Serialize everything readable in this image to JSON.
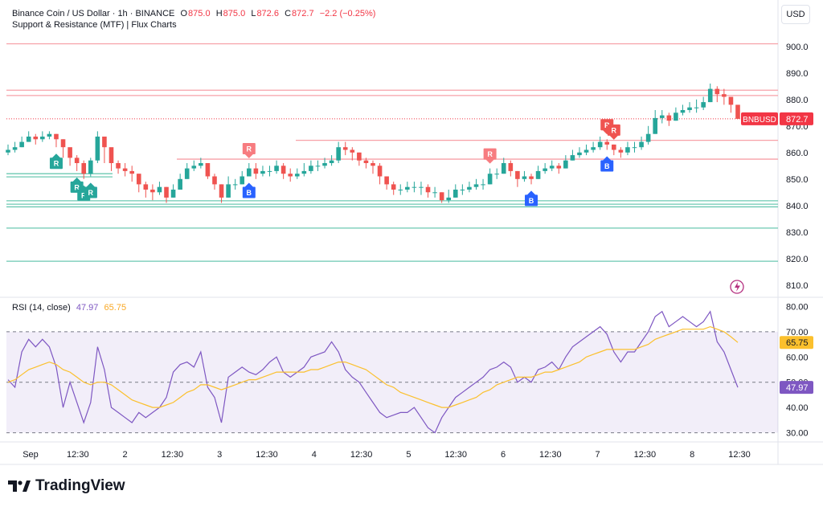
{
  "header": {
    "symbol": "Binance Coin / US Dollar · 1h · BINANCE",
    "o_label": "O",
    "o_value": "875.0",
    "h_label": "H",
    "h_value": "875.0",
    "l_label": "L",
    "l_value": "872.6",
    "c_label": "C",
    "c_value": "872.7",
    "change": "−2.2 (−0.25%)",
    "indicator": "Support & Resistance (MTF) | Flux Charts",
    "currency": "USD"
  },
  "rsi_legend": {
    "title": "RSI (14, close)",
    "rsi_value": "47.97",
    "ma_value": "65.75"
  },
  "branding": {
    "logo_text": "TradingView"
  },
  "colors": {
    "up": "#26a69a",
    "down": "#ef5350",
    "resistance": "#f7a1a8",
    "support": "#6cc8b2",
    "rsi_line": "#7e57c2",
    "rsi_ma": "#fbc02d",
    "buy_marker": "#2962ff",
    "sell_marker": "#f77c80",
    "price_tag": "#f23645"
  },
  "chart_data": [
    {
      "type": "candlestick",
      "ylim": [
        806,
        906
      ],
      "y_ticks": [
        "900.0",
        "890.0",
        "880.0",
        "870.0",
        "860.0",
        "850.0",
        "840.0",
        "830.0",
        "820.0",
        "810.0"
      ],
      "x_ticks": [
        "Sep",
        "12:30",
        "2",
        "12:30",
        "3",
        "12:30",
        "4",
        "12:30",
        "5",
        "12:30",
        "6",
        "12:30",
        "7",
        "12:30",
        "8",
        "12:30"
      ],
      "last_price": "872.7",
      "last_price_label": "BNBUSD",
      "resistance_levels": [
        901.0,
        883.5,
        881.5,
        864.6,
        857.5
      ],
      "support_levels": [
        852.0,
        850.8,
        841.8,
        840.5,
        839.5,
        831.5,
        819.0
      ],
      "buy_markers": [
        {
          "x": 12,
          "label": "B"
        },
        {
          "x": 35,
          "label": "B"
        },
        {
          "x": 76,
          "label": "B"
        },
        {
          "x": 87,
          "label": "B"
        }
      ],
      "sell_markers": [
        {
          "x": 35,
          "label": "R"
        },
        {
          "x": 70,
          "label": "R"
        },
        {
          "x": 87,
          "label": "R"
        },
        {
          "x": 88,
          "label": "R"
        }
      ],
      "support_markers": [
        {
          "x": 7,
          "label": "R"
        },
        {
          "x": 10,
          "label": "R"
        },
        {
          "x": 11,
          "label": "R"
        },
        {
          "x": 12,
          "label": "R"
        }
      ],
      "close": [
        861,
        862,
        864,
        866,
        865,
        866,
        867,
        865,
        862,
        858,
        856,
        852,
        857,
        866,
        862,
        856,
        854,
        853,
        852,
        848,
        846,
        845,
        847,
        843,
        846,
        850,
        854,
        855,
        856,
        851,
        848,
        843,
        848,
        848,
        851,
        854,
        852,
        853,
        853,
        855,
        852,
        851,
        852,
        853,
        855,
        855,
        856,
        857,
        862,
        861,
        860,
        857,
        856,
        855,
        851,
        848,
        846,
        846,
        847,
        847,
        847,
        845,
        845,
        842,
        843,
        846,
        846,
        847,
        848,
        848,
        852,
        852,
        856,
        853,
        850,
        851,
        850,
        853,
        854,
        855,
        854,
        857,
        859,
        860,
        861,
        862,
        864,
        863,
        861,
        860,
        862,
        862,
        864,
        867,
        873,
        874,
        872,
        875,
        876,
        877,
        877,
        879,
        884,
        882,
        881,
        878,
        872.7
      ],
      "high": [
        863,
        864,
        866,
        868,
        867,
        868,
        868,
        867,
        865,
        861,
        859,
        857,
        858,
        868,
        866,
        861,
        857,
        856,
        855,
        852,
        849,
        848,
        849,
        847,
        848,
        852,
        856,
        857,
        858,
        856,
        852,
        848,
        851,
        850,
        853,
        856,
        856,
        855,
        855,
        857,
        856,
        854,
        854,
        856,
        857,
        857,
        858,
        859,
        864,
        864,
        862,
        860,
        858,
        857,
        856,
        851,
        849,
        848,
        849,
        849,
        849,
        848,
        847,
        845,
        846,
        848,
        848,
        849,
        850,
        850,
        854,
        854,
        858,
        857,
        853,
        853,
        852,
        855,
        856,
        857,
        856,
        859,
        861,
        862,
        863,
        864,
        866,
        865,
        863,
        862,
        864,
        864,
        866,
        870,
        876,
        876,
        875,
        877,
        878,
        879,
        880,
        881,
        886,
        885,
        884,
        881,
        875.0
      ],
      "low": [
        859,
        860,
        862,
        864,
        863,
        864,
        865,
        862,
        858,
        855,
        853,
        850,
        851,
        856,
        856,
        853,
        852,
        851,
        849,
        845,
        843,
        842,
        844,
        841,
        843,
        846,
        850,
        853,
        854,
        850,
        846,
        841,
        843,
        846,
        848,
        851,
        850,
        851,
        851,
        852,
        850,
        849,
        850,
        851,
        852,
        853,
        854,
        855,
        856,
        859,
        857,
        855,
        854,
        852,
        848,
        846,
        844,
        844,
        845,
        845,
        844,
        843,
        843,
        841,
        841,
        843,
        844,
        845,
        846,
        846,
        848,
        850,
        852,
        851,
        847,
        849,
        848,
        850,
        852,
        853,
        852,
        854,
        857,
        858,
        859,
        860,
        861,
        861,
        859,
        858,
        859,
        860,
        861,
        863,
        867,
        871,
        870,
        872,
        874,
        875,
        875,
        876,
        879,
        879,
        878,
        875,
        872.6
      ]
    },
    {
      "type": "line",
      "title": "RSI (14, close)",
      "ylim": [
        27,
        83
      ],
      "y_ticks": [
        "80.00",
        "70.00",
        "60.00",
        "50.00",
        "40.00",
        "30.00"
      ],
      "bands": [
        30,
        50,
        70
      ],
      "last_rsi": "47.97",
      "last_ma": "65.75",
      "series": [
        {
          "name": "RSI",
          "values": [
            51,
            48,
            62,
            67,
            64,
            67,
            64,
            56,
            40,
            50,
            42,
            34,
            42,
            64,
            55,
            40,
            38,
            36,
            34,
            38,
            36,
            38,
            40,
            44,
            54,
            57,
            58,
            56,
            62,
            48,
            44,
            34,
            52,
            54,
            56,
            54,
            53,
            55,
            58,
            60,
            54,
            52,
            54,
            56,
            60,
            61,
            62,
            66,
            62,
            55,
            52,
            50,
            46,
            42,
            38,
            36,
            37,
            38,
            38,
            40,
            36,
            32,
            30,
            36,
            40,
            44,
            46,
            48,
            50,
            52,
            55,
            56,
            58,
            56,
            50,
            52,
            50,
            55,
            56,
            58,
            55,
            60,
            64,
            66,
            68,
            70,
            72,
            69,
            62,
            58,
            62,
            62,
            66,
            70,
            76,
            78,
            72,
            74,
            76,
            74,
            72,
            74,
            78,
            66,
            62,
            55,
            47.97
          ]
        },
        {
          "name": "RSI-based MA",
          "values": [
            50,
            51,
            53,
            55,
            56,
            57,
            58,
            57,
            55,
            54,
            52,
            50,
            49,
            50,
            50,
            49,
            47,
            45,
            43,
            42,
            41,
            40,
            40,
            41,
            42,
            44,
            46,
            47,
            49,
            49,
            48,
            47,
            48,
            49,
            50,
            51,
            51,
            52,
            53,
            54,
            54,
            54,
            54,
            54,
            55,
            55,
            56,
            57,
            58,
            58,
            57,
            56,
            55,
            53,
            51,
            49,
            48,
            46,
            45,
            44,
            43,
            42,
            41,
            40,
            40,
            41,
            42,
            43,
            44,
            46,
            47,
            49,
            50,
            51,
            52,
            52,
            52,
            53,
            54,
            54,
            55,
            56,
            57,
            58,
            60,
            61,
            62,
            63,
            63,
            63,
            63,
            63,
            64,
            65,
            67,
            68,
            69,
            70,
            71,
            71,
            71,
            71,
            72,
            71,
            70,
            68,
            65.75
          ]
        }
      ]
    }
  ]
}
